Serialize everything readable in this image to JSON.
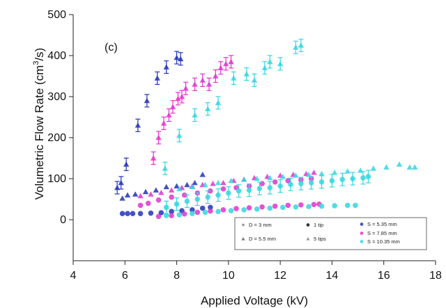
{
  "chart_data": {
    "type": "scatter",
    "panel_label": "(c)",
    "xlabel": "Applied Voltage (kV)",
    "ylabel_main": "Volumetric Flow Rate (cm",
    "ylabel_sup": "3",
    "ylabel_end": "/s)",
    "xlim": [
      4,
      18
    ],
    "ylim": [
      -100,
      500
    ],
    "x_ticks": [
      4,
      6,
      8,
      10,
      12,
      14,
      16,
      18
    ],
    "x_tick_labels": [
      "4",
      "6",
      "8",
      "10",
      "12",
      "14",
      "16",
      "18"
    ],
    "y_ticks": [
      0,
      100,
      200,
      300,
      400,
      500
    ],
    "y_tick_labels": [
      "0",
      "100",
      "200",
      "300",
      "400",
      "500"
    ],
    "grid": false,
    "legend_position": "bottom-right",
    "legend": {
      "markers": [
        {
          "label": "D = 3 mm",
          "symbol": "circle-sm",
          "color": "#888888"
        },
        {
          "label": "D = 5.5 mm",
          "symbol": "triangle",
          "color": "#666666"
        },
        {
          "label": "1 tip",
          "symbol": "circle",
          "color": "#111111"
        },
        {
          "label": "5 tips",
          "symbol": "triangle",
          "color": "#888888"
        },
        {
          "label": "S = 5.35 mm",
          "symbol": "circle",
          "color": "#2233bb"
        },
        {
          "label": "S = 7.85 mm",
          "symbol": "circle",
          "color": "#e033cc"
        },
        {
          "label": "S = 10.35 mm",
          "symbol": "circle",
          "color": "#33d6e0"
        }
      ]
    },
    "series": [
      {
        "color": "#2233bb",
        "marker": "triangle",
        "error_bars": true,
        "points": [
          [
            5.7,
            78
          ],
          [
            5.85,
            90
          ],
          [
            6.05,
            135
          ],
          [
            6.5,
            230
          ],
          [
            6.85,
            290
          ],
          [
            7.25,
            345
          ],
          [
            7.6,
            372
          ],
          [
            8.0,
            395
          ],
          [
            8.15,
            392
          ]
        ]
      },
      {
        "color": "#e033cc",
        "marker": "triangle",
        "error_bars": true,
        "points": [
          [
            7.1,
            150
          ],
          [
            7.3,
            200
          ],
          [
            7.5,
            235
          ],
          [
            7.7,
            255
          ],
          [
            7.85,
            275
          ],
          [
            8.05,
            295
          ],
          [
            8.2,
            300
          ],
          [
            8.35,
            320
          ],
          [
            8.7,
            330
          ],
          [
            9.0,
            340
          ],
          [
            9.25,
            330
          ],
          [
            9.5,
            350
          ],
          [
            9.7,
            370
          ],
          [
            9.9,
            380
          ],
          [
            10.1,
            385
          ]
        ]
      },
      {
        "color": "#33d6e0",
        "marker": "triangle",
        "error_bars": true,
        "points": [
          [
            7.55,
            125
          ],
          [
            8.1,
            205
          ],
          [
            8.7,
            255
          ],
          [
            9.2,
            270
          ],
          [
            9.6,
            285
          ],
          [
            10.2,
            345
          ],
          [
            10.7,
            355
          ],
          [
            11.0,
            340
          ],
          [
            11.4,
            370
          ],
          [
            11.6,
            385
          ],
          [
            12.0,
            380
          ],
          [
            12.6,
            420
          ],
          [
            12.8,
            425
          ]
        ]
      },
      {
        "color": "#2233bb",
        "marker": "triangle",
        "error_bars": false,
        "points": [
          [
            5.9,
            52
          ],
          [
            6.1,
            60
          ],
          [
            6.4,
            62
          ],
          [
            6.8,
            68
          ],
          [
            7.2,
            72
          ],
          [
            7.6,
            80
          ],
          [
            8.0,
            82
          ],
          [
            8.4,
            85
          ],
          [
            8.7,
            90
          ],
          [
            9.0,
            110
          ]
        ]
      },
      {
        "color": "#2233bb",
        "marker": "circle",
        "error_bars": false,
        "points": [
          [
            5.9,
            15
          ],
          [
            6.1,
            15
          ],
          [
            6.3,
            15
          ],
          [
            6.6,
            15
          ],
          [
            7.0,
            16
          ],
          [
            7.4,
            17
          ],
          [
            7.8,
            20
          ],
          [
            8.2,
            22
          ],
          [
            8.6,
            24
          ],
          [
            9.0,
            28
          ],
          [
            9.3,
            30
          ]
        ]
      },
      {
        "color": "#e033cc",
        "marker": "triangle",
        "error_bars": false,
        "points": [
          [
            6.6,
            58
          ],
          [
            7.0,
            62
          ],
          [
            7.4,
            66
          ],
          [
            7.8,
            72
          ],
          [
            8.2,
            78
          ],
          [
            8.6,
            82
          ],
          [
            9.0,
            85
          ],
          [
            9.4,
            88
          ],
          [
            9.8,
            90
          ],
          [
            10.2,
            95
          ],
          [
            10.6,
            98
          ],
          [
            11.0,
            102
          ],
          [
            11.5,
            105
          ],
          [
            12.0,
            108
          ],
          [
            12.5,
            110
          ],
          [
            13.0,
            112
          ],
          [
            13.3,
            115
          ]
        ]
      },
      {
        "color": "#e033cc",
        "marker": "circle",
        "error_bars": false,
        "points": [
          [
            6.6,
            35
          ],
          [
            6.9,
            40
          ],
          [
            7.3,
            48
          ],
          [
            7.8,
            55
          ],
          [
            8.3,
            60
          ],
          [
            8.8,
            65
          ],
          [
            9.3,
            70
          ],
          [
            9.8,
            75
          ],
          [
            10.3,
            78
          ],
          [
            10.8,
            82
          ],
          [
            11.3,
            88
          ],
          [
            11.8,
            92
          ],
          [
            12.3,
            95
          ],
          [
            12.8,
            97
          ],
          [
            13.2,
            100
          ]
        ]
      },
      {
        "color": "#e033cc",
        "marker": "circle",
        "error_bars": false,
        "points": [
          [
            7.3,
            8
          ],
          [
            7.8,
            10
          ],
          [
            8.3,
            14
          ],
          [
            8.8,
            18
          ],
          [
            9.3,
            21
          ],
          [
            9.8,
            24
          ],
          [
            10.3,
            27
          ],
          [
            10.8,
            29
          ],
          [
            11.3,
            31
          ],
          [
            11.8,
            33
          ],
          [
            12.3,
            35
          ],
          [
            12.8,
            36
          ],
          [
            13.3,
            37
          ],
          [
            13.5,
            38
          ]
        ]
      },
      {
        "color": "#33d6e0",
        "marker": "circle",
        "error_bars": false,
        "points": [
          [
            7.6,
            10
          ],
          [
            8.1,
            12
          ],
          [
            8.6,
            15
          ],
          [
            9.1,
            18
          ],
          [
            9.6,
            20
          ],
          [
            10.1,
            22
          ],
          [
            10.6,
            24
          ],
          [
            11.1,
            26
          ],
          [
            11.6,
            28
          ],
          [
            12.1,
            30
          ],
          [
            12.6,
            31
          ],
          [
            13.1,
            32
          ],
          [
            13.6,
            33
          ],
          [
            14.1,
            34
          ],
          [
            14.6,
            35
          ],
          [
            14.9,
            35
          ]
        ]
      },
      {
        "color": "#33d6e0",
        "marker": "circle",
        "error_bars": true,
        "points": [
          [
            7.6,
            30
          ],
          [
            8.0,
            38
          ],
          [
            8.4,
            45
          ],
          [
            8.8,
            50
          ],
          [
            9.2,
            55
          ],
          [
            9.6,
            60
          ],
          [
            10.0,
            65
          ],
          [
            10.4,
            70
          ],
          [
            10.8,
            72
          ],
          [
            11.2,
            76
          ],
          [
            11.6,
            78
          ],
          [
            12.0,
            82
          ],
          [
            12.4,
            86
          ],
          [
            12.8,
            88
          ],
          [
            13.2,
            90
          ],
          [
            13.6,
            92
          ],
          [
            14.0,
            95
          ],
          [
            14.4,
            98
          ],
          [
            14.8,
            100
          ],
          [
            15.2,
            102
          ],
          [
            15.4,
            105
          ]
        ]
      },
      {
        "color": "#33d6e0",
        "marker": "triangle",
        "error_bars": false,
        "points": [
          [
            8.1,
            75
          ],
          [
            8.6,
            80
          ],
          [
            9.1,
            85
          ],
          [
            9.6,
            90
          ],
          [
            10.1,
            95
          ],
          [
            10.6,
            98
          ],
          [
            11.1,
            100
          ],
          [
            11.6,
            102
          ],
          [
            12.1,
            105
          ],
          [
            12.6,
            108
          ],
          [
            13.1,
            110
          ],
          [
            13.6,
            112
          ],
          [
            14.1,
            115
          ],
          [
            14.6,
            118
          ],
          [
            15.1,
            120
          ],
          [
            15.6,
            125
          ],
          [
            16.1,
            128
          ],
          [
            16.6,
            135
          ],
          [
            17.0,
            128
          ],
          [
            17.2,
            128
          ]
        ]
      }
    ]
  }
}
